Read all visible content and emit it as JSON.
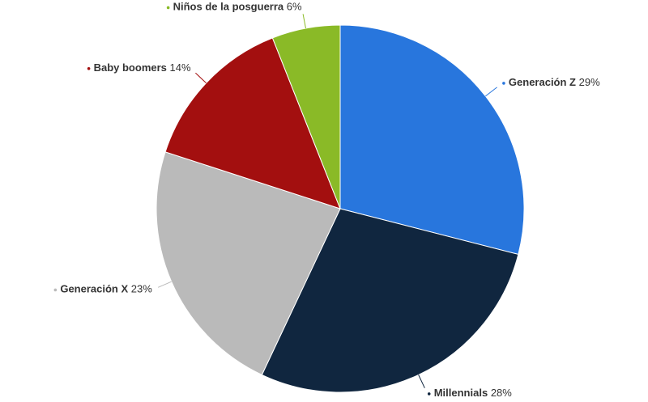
{
  "chart_data": {
    "type": "pie",
    "categories": [
      "Generación Z",
      "Millennials",
      "Generación X",
      "Baby boomers",
      "Niños de la posguerra"
    ],
    "values": [
      29,
      28,
      23,
      14,
      6
    ],
    "value_labels": [
      "29%",
      "28%",
      "23%",
      "14%",
      "6%"
    ],
    "colors": [
      "#2876dd",
      "#10263f",
      "#bababa",
      "#a30f0f",
      "#8aba27"
    ]
  }
}
